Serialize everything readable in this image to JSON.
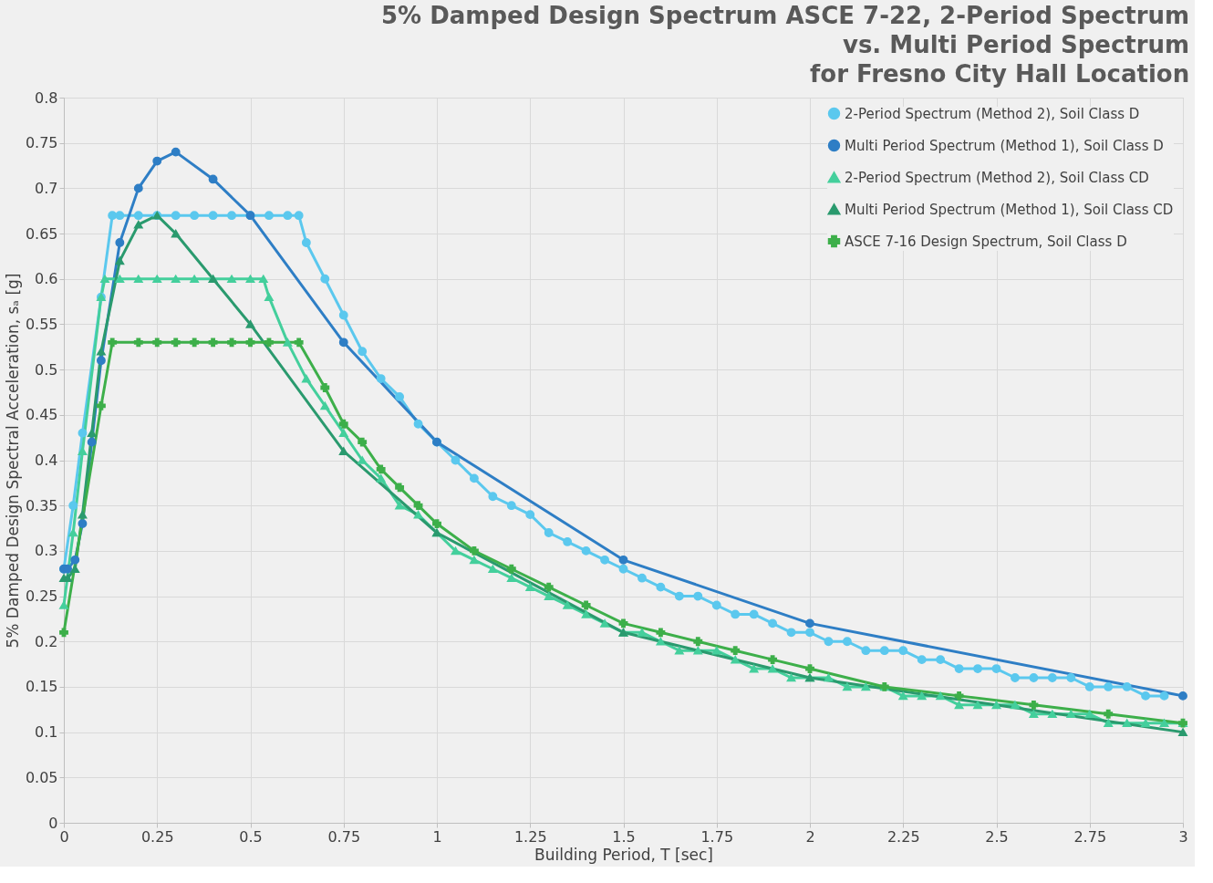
{
  "chart_data": {
    "type": "line",
    "title": [
      "5% Damped Design Spectrum ASCE 7-22, 2-Period Spectrum",
      "vs. Multi Period Spectrum",
      "for Fresno City Hall Location"
    ],
    "xlabel": "Building Period, T [sec]",
    "ylabel": "5% Damped Design Spectral Acceleration, sₐ [g]",
    "xlim": [
      0,
      3
    ],
    "xticks": [
      0,
      0.25,
      0.5,
      0.75,
      1,
      1.25,
      1.5,
      1.75,
      2,
      2.25,
      2.5,
      2.75,
      3
    ],
    "ylim": [
      0,
      0.8
    ],
    "yticks": [
      0,
      0.05,
      0.1,
      0.15,
      0.2,
      0.25,
      0.3,
      0.35,
      0.4,
      0.45,
      0.5,
      0.55,
      0.6,
      0.65,
      0.7,
      0.75,
      0.8
    ],
    "grid": true,
    "legend": "top right",
    "line_style": "solid",
    "series": [
      {
        "name": "2-Period Spectrum (Method 2), Soil Class D",
        "color": "#5bc8ee",
        "marker": "circle",
        "x": [
          0,
          0.025,
          0.05,
          0.1,
          0.13,
          0.15,
          0.2,
          0.25,
          0.3,
          0.35,
          0.4,
          0.45,
          0.5,
          0.55,
          0.6,
          0.63,
          0.65,
          0.7,
          0.75,
          0.8,
          0.85,
          0.9,
          0.95,
          1.0,
          1.05,
          1.1,
          1.15,
          1.2,
          1.25,
          1.3,
          1.35,
          1.4,
          1.45,
          1.5,
          1.55,
          1.6,
          1.65,
          1.7,
          1.75,
          1.8,
          1.85,
          1.9,
          1.95,
          2.0,
          2.05,
          2.1,
          2.15,
          2.2,
          2.25,
          2.3,
          2.35,
          2.4,
          2.45,
          2.5,
          2.55,
          2.6,
          2.65,
          2.7,
          2.75,
          2.8,
          2.85,
          2.9,
          2.95
        ],
        "values": [
          0.28,
          0.35,
          0.43,
          0.58,
          0.67,
          0.67,
          0.67,
          0.67,
          0.67,
          0.67,
          0.67,
          0.67,
          0.67,
          0.67,
          0.67,
          0.67,
          0.64,
          0.6,
          0.56,
          0.52,
          0.49,
          0.47,
          0.44,
          0.42,
          0.4,
          0.38,
          0.36,
          0.35,
          0.34,
          0.32,
          0.31,
          0.3,
          0.29,
          0.28,
          0.27,
          0.26,
          0.25,
          0.25,
          0.24,
          0.23,
          0.23,
          0.22,
          0.21,
          0.21,
          0.2,
          0.2,
          0.19,
          0.19,
          0.19,
          0.18,
          0.18,
          0.17,
          0.17,
          0.17,
          0.16,
          0.16,
          0.16,
          0.16,
          0.15,
          0.15,
          0.15,
          0.14,
          0.14
        ]
      },
      {
        "name": "Multi Period Spectrum (Method 1), Soil Class D",
        "color": "#2e7ec5",
        "marker": "circle",
        "x": [
          0,
          0.01,
          0.03,
          0.05,
          0.075,
          0.1,
          0.15,
          0.2,
          0.25,
          0.3,
          0.4,
          0.5,
          0.75,
          1.0,
          1.5,
          2.0,
          3.0
        ],
        "values": [
          0.28,
          0.28,
          0.29,
          0.33,
          0.42,
          0.51,
          0.64,
          0.7,
          0.73,
          0.74,
          0.71,
          0.67,
          0.53,
          0.42,
          0.29,
          0.22,
          0.14
        ]
      },
      {
        "name": "2-Period Spectrum (Method 2), Soil Class CD",
        "color": "#44cf9c",
        "marker": "triangle",
        "x": [
          0,
          0.025,
          0.05,
          0.1,
          0.11,
          0.15,
          0.2,
          0.25,
          0.3,
          0.35,
          0.4,
          0.45,
          0.5,
          0.535,
          0.55,
          0.6,
          0.65,
          0.7,
          0.75,
          0.8,
          0.85,
          0.9,
          0.95,
          1.0,
          1.05,
          1.1,
          1.15,
          1.2,
          1.25,
          1.3,
          1.35,
          1.4,
          1.45,
          1.5,
          1.55,
          1.6,
          1.65,
          1.7,
          1.75,
          1.8,
          1.85,
          1.9,
          1.95,
          2.0,
          2.05,
          2.1,
          2.15,
          2.2,
          2.25,
          2.3,
          2.35,
          2.4,
          2.45,
          2.5,
          2.55,
          2.6,
          2.65,
          2.7,
          2.75,
          2.8,
          2.85,
          2.9,
          2.95,
          3.0
        ],
        "values": [
          0.24,
          0.32,
          0.41,
          0.58,
          0.6,
          0.6,
          0.6,
          0.6,
          0.6,
          0.6,
          0.6,
          0.6,
          0.6,
          0.6,
          0.58,
          0.53,
          0.49,
          0.46,
          0.43,
          0.4,
          0.38,
          0.35,
          0.34,
          0.32,
          0.3,
          0.29,
          0.28,
          0.27,
          0.26,
          0.25,
          0.24,
          0.23,
          0.22,
          0.21,
          0.21,
          0.2,
          0.19,
          0.19,
          0.19,
          0.18,
          0.17,
          0.17,
          0.16,
          0.16,
          0.16,
          0.15,
          0.15,
          0.15,
          0.14,
          0.14,
          0.14,
          0.13,
          0.13,
          0.13,
          0.13,
          0.12,
          0.12,
          0.12,
          0.12,
          0.11,
          0.11,
          0.11,
          0.11,
          0.11
        ]
      },
      {
        "name": "Multi Period Spectrum (Method 1), Soil Class CD",
        "color": "#2a9a6e",
        "marker": "triangle",
        "x": [
          0,
          0.01,
          0.03,
          0.05,
          0.075,
          0.1,
          0.15,
          0.2,
          0.25,
          0.3,
          0.4,
          0.5,
          0.75,
          1.0,
          1.5,
          2.0,
          3.0
        ],
        "values": [
          0.27,
          0.27,
          0.28,
          0.34,
          0.43,
          0.52,
          0.62,
          0.66,
          0.67,
          0.65,
          0.6,
          0.55,
          0.41,
          0.32,
          0.21,
          0.16,
          0.1
        ]
      },
      {
        "name": "ASCE 7-16 Design Spectrum, Soil Class D",
        "color": "#3daf4a",
        "marker": "cross",
        "x": [
          0,
          0.1,
          0.13,
          0.2,
          0.25,
          0.3,
          0.35,
          0.4,
          0.45,
          0.5,
          0.55,
          0.63,
          0.7,
          0.75,
          0.8,
          0.85,
          0.9,
          0.95,
          1.0,
          1.1,
          1.2,
          1.3,
          1.4,
          1.5,
          1.6,
          1.7,
          1.8,
          1.9,
          2.0,
          2.2,
          2.4,
          2.6,
          2.8,
          3.0
        ],
        "values": [
          0.21,
          0.46,
          0.53,
          0.53,
          0.53,
          0.53,
          0.53,
          0.53,
          0.53,
          0.53,
          0.53,
          0.53,
          0.48,
          0.44,
          0.42,
          0.39,
          0.37,
          0.35,
          0.33,
          0.3,
          0.28,
          0.26,
          0.24,
          0.22,
          0.21,
          0.2,
          0.19,
          0.18,
          0.17,
          0.15,
          0.14,
          0.13,
          0.12,
          0.11
        ]
      }
    ]
  }
}
